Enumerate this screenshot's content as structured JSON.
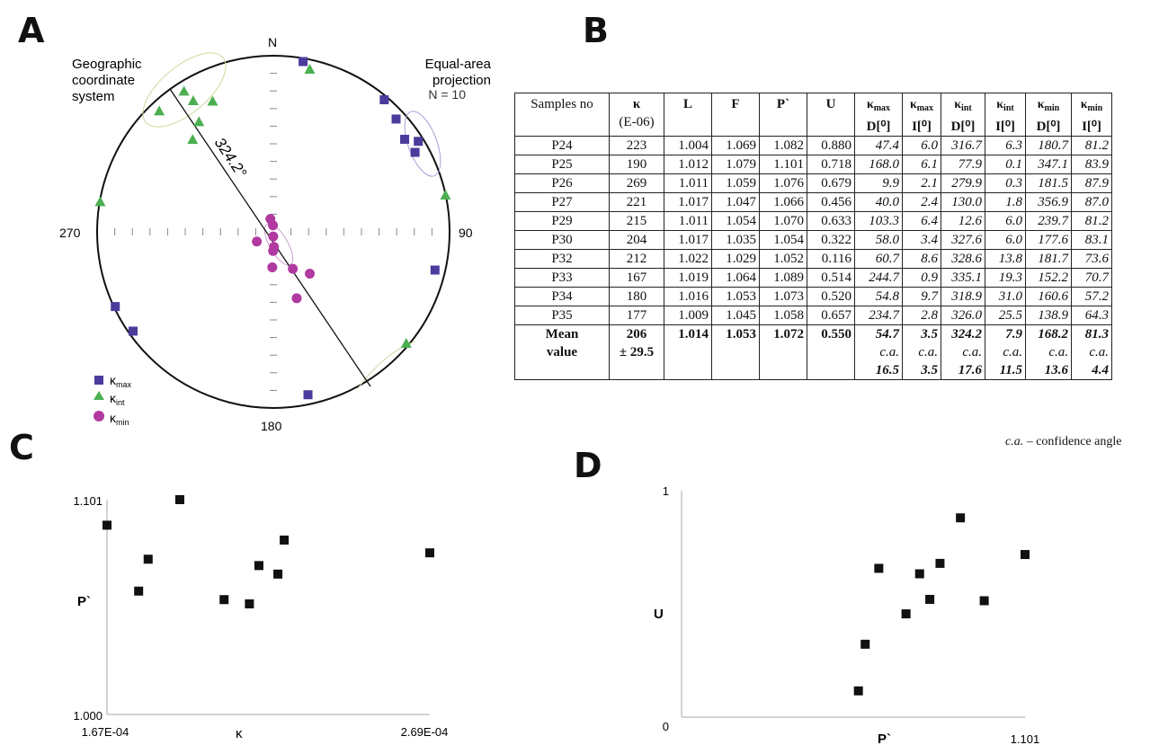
{
  "panels": {
    "a": "A",
    "b": "B",
    "c": "C",
    "d": "D"
  },
  "stereonet": {
    "north": "N",
    "east": "90",
    "south": "180",
    "west": "270",
    "title_left_1": "Geographic",
    "title_left_2": "coordinate",
    "title_left_3": "system",
    "title_right_1": "Equal-area",
    "title_right_2": "projection",
    "n_label": "N = 10",
    "trend_label": "324.2°",
    "legend": {
      "kmax": "κ",
      "kmax_sub": "max",
      "kint": "κ",
      "kint_sub": "int",
      "kmin": "κ",
      "kmin_sub": "min"
    },
    "colors": {
      "kmax": "#4a3c9c",
      "kint": "#4caf50",
      "kmin": "#b03aa0"
    }
  },
  "table": {
    "headers": {
      "samples": "Samples no",
      "kappa": "κ",
      "kappa_unit": "(E-06)",
      "L": "L",
      "F": "F",
      "P": "P`",
      "U": "U",
      "kmax": "κ",
      "kmax_sub": "max",
      "kint": "κ",
      "kint_sub": "int",
      "kmin": "κ",
      "kmin_sub": "min",
      "D": "D[⁰]",
      "I": "I[⁰]"
    },
    "rows": [
      [
        "P24",
        "223",
        "1.004",
        "1.069",
        "1.082",
        "0.880",
        "47.4",
        "6.0",
        "316.7",
        "6.3",
        "180.7",
        "81.2"
      ],
      [
        "P25",
        "190",
        "1.012",
        "1.079",
        "1.101",
        "0.718",
        "168.0",
        "6.1",
        "77.9",
        "0.1",
        "347.1",
        "83.9"
      ],
      [
        "P26",
        "269",
        "1.011",
        "1.059",
        "1.076",
        "0.679",
        "9.9",
        "2.1",
        "279.9",
        "0.3",
        "181.5",
        "87.9"
      ],
      [
        "P27",
        "221",
        "1.017",
        "1.047",
        "1.066",
        "0.456",
        "40.0",
        "2.4",
        "130.0",
        "1.8",
        "356.9",
        "87.0"
      ],
      [
        "P29",
        "215",
        "1.011",
        "1.054",
        "1.070",
        "0.633",
        "103.3",
        "6.4",
        "12.6",
        "6.0",
        "239.7",
        "81.2"
      ],
      [
        "P30",
        "204",
        "1.017",
        "1.035",
        "1.054",
        "0.322",
        "58.0",
        "3.4",
        "327.6",
        "6.0",
        "177.6",
        "83.1"
      ],
      [
        "P32",
        "212",
        "1.022",
        "1.029",
        "1.052",
        "0.116",
        "60.7",
        "8.6",
        "328.6",
        "13.8",
        "181.7",
        "73.6"
      ],
      [
        "P33",
        "167",
        "1.019",
        "1.064",
        "1.089",
        "0.514",
        "244.7",
        "0.9",
        "335.1",
        "19.3",
        "152.2",
        "70.7"
      ],
      [
        "P34",
        "180",
        "1.016",
        "1.053",
        "1.073",
        "0.520",
        "54.8",
        "9.7",
        "318.9",
        "31.0",
        "160.6",
        "57.2"
      ],
      [
        "P35",
        "177",
        "1.009",
        "1.045",
        "1.058",
        "0.657",
        "234.7",
        "2.8",
        "326.0",
        "25.5",
        "138.9",
        "64.3"
      ]
    ],
    "mean": {
      "label_1": "Mean",
      "label_2": "value",
      "kappa": "206",
      "kappa_sd": "± 29.5",
      "L": "1.014",
      "F": "1.053",
      "P": "1.072",
      "U": "0.550",
      "ca": "c.a.",
      "kmax_D": "54.7",
      "kmax_D_ca": "16.5",
      "kmax_I": "3.5",
      "kmax_I_ca": "3.5",
      "kint_D": "324.2",
      "kint_D_ca": "17.6",
      "kint_I": "7.9",
      "kint_I_ca": "11.5",
      "kmin_D": "168.2",
      "kmin_D_ca": "13.6",
      "kmin_I": "81.3",
      "kmin_I_ca": "4.4"
    },
    "note_abbr": "c.a.",
    "note_text": " – confidence angle"
  },
  "chart_data": [
    {
      "type": "scatter",
      "xlabel": "κ",
      "ylabel": "P`",
      "x_tick_labels": [
        "1.67E-04",
        "2.69E-04"
      ],
      "y_tick_labels": [
        "1.000",
        "1.101"
      ],
      "xlim": [
        0.000167,
        0.000269
      ],
      "ylim": [
        1.0,
        1.101
      ],
      "points": [
        {
          "x": 0.000223,
          "y": 1.082
        },
        {
          "x": 0.00019,
          "y": 1.101
        },
        {
          "x": 0.000269,
          "y": 1.076
        },
        {
          "x": 0.000221,
          "y": 1.066
        },
        {
          "x": 0.000215,
          "y": 1.07
        },
        {
          "x": 0.000204,
          "y": 1.054
        },
        {
          "x": 0.000212,
          "y": 1.052
        },
        {
          "x": 0.000167,
          "y": 1.089
        },
        {
          "x": 0.00018,
          "y": 1.073
        },
        {
          "x": 0.000177,
          "y": 1.058
        }
      ]
    },
    {
      "type": "scatter",
      "xlabel": "P`",
      "ylabel": "U",
      "x_tick_labels": [
        "1.101"
      ],
      "y_tick_labels": [
        "0",
        "1"
      ],
      "xlim": [
        1.0,
        1.101
      ],
      "ylim": [
        0,
        1
      ],
      "points": [
        {
          "x": 1.082,
          "y": 0.88
        },
        {
          "x": 1.101,
          "y": 0.718
        },
        {
          "x": 1.076,
          "y": 0.679
        },
        {
          "x": 1.066,
          "y": 0.456
        },
        {
          "x": 1.07,
          "y": 0.633
        },
        {
          "x": 1.054,
          "y": 0.322
        },
        {
          "x": 1.052,
          "y": 0.116
        },
        {
          "x": 1.089,
          "y": 0.514
        },
        {
          "x": 1.073,
          "y": 0.52
        },
        {
          "x": 1.058,
          "y": 0.657
        }
      ]
    }
  ]
}
